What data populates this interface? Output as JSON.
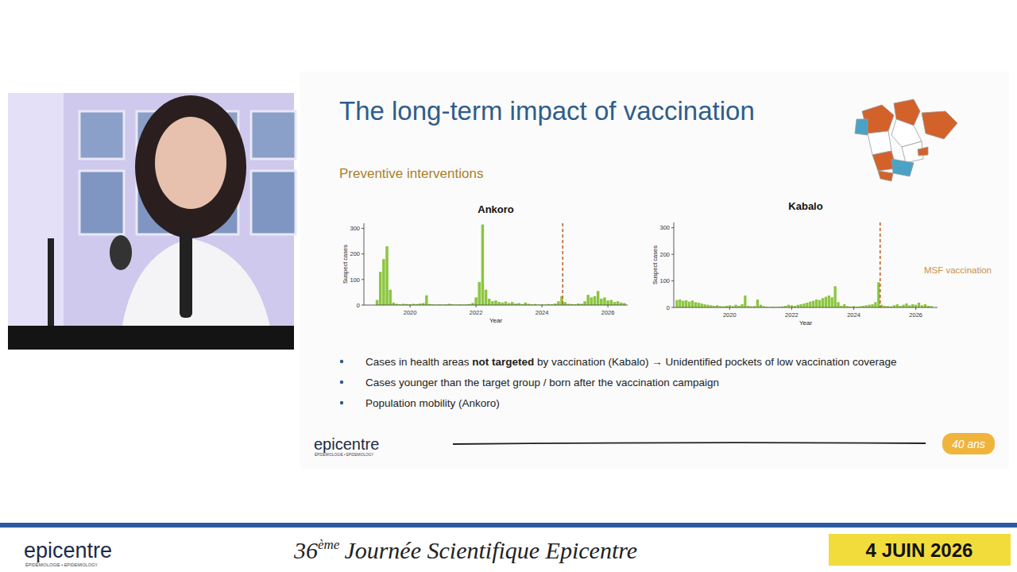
{
  "slide": {
    "title": "The long-term impact of vaccination",
    "subtitle": "Preventive interventions",
    "bullets": [
      {
        "before": "Cases in health areas ",
        "bold": "not targeted",
        "after": " by vaccination (Kabalo) → Unidentified pockets of low vaccination coverage"
      },
      {
        "text": "Cases younger than the target group / born after the vaccination campaign"
      },
      {
        "text": "Population mobility (Ankoro)"
      }
    ],
    "logo": {
      "name": "epicentre",
      "tagline": "ÉPIDÉMIOLOGIE • EPIDEMIOLOGY"
    },
    "badge": "40 ans"
  },
  "footer": {
    "logo": "epicentre",
    "tagline": "ÉPIDÉMIOLOGIE • EPIDEMIOLOGY",
    "edition": "36",
    "edition_suffix": "ème",
    "event": "Journée Scientifique Epicentre",
    "date": "4 JUIN 2026"
  },
  "chart_data": [
    {
      "type": "bar",
      "title": "Ankoro",
      "x_label": "Year",
      "y_label": "Suspect cases",
      "color": "#8cc63f",
      "x": [
        2019.0,
        2019.1,
        2019.2,
        2019.3,
        2019.4,
        2019.5,
        2019.6,
        2019.7,
        2019.8,
        2019.9,
        2020.0,
        2020.1,
        2020.2,
        2020.3,
        2020.4,
        2020.5,
        2020.6,
        2020.7,
        2020.8,
        2020.9,
        2021.0,
        2021.1,
        2021.2,
        2021.3,
        2021.4,
        2021.5,
        2021.6,
        2021.7,
        2021.8,
        2021.9,
        2022.0,
        2022.1,
        2022.2,
        2022.3,
        2022.4,
        2022.5,
        2022.6,
        2022.7,
        2022.8,
        2022.9,
        2023.0,
        2023.1,
        2023.2,
        2023.3,
        2023.4,
        2023.5,
        2023.6,
        2023.7,
        2023.8,
        2023.9,
        2024.0,
        2024.1,
        2024.2,
        2024.3,
        2024.4,
        2024.5,
        2024.6,
        2024.7,
        2024.8,
        2024.9,
        2025.0,
        2025.1,
        2025.2,
        2025.3,
        2025.4,
        2025.5,
        2025.6,
        2025.7,
        2025.8,
        2025.9,
        2026.0,
        2026.1,
        2026.2,
        2026.3,
        2026.4,
        2026.5
      ],
      "values": [
        20,
        130,
        180,
        230,
        60,
        10,
        5,
        3,
        5,
        4,
        3,
        5,
        4,
        6,
        8,
        38,
        4,
        3,
        2,
        3,
        2,
        3,
        5,
        3,
        2,
        3,
        2,
        3,
        4,
        8,
        30,
        90,
        315,
        60,
        25,
        15,
        18,
        12,
        10,
        14,
        8,
        12,
        6,
        8,
        4,
        10,
        5,
        3,
        4,
        2,
        3,
        2,
        4,
        3,
        6,
        15,
        35,
        12,
        5,
        4,
        3,
        6,
        5,
        15,
        40,
        30,
        35,
        55,
        25,
        30,
        18,
        20,
        12,
        15,
        10,
        8
      ],
      "xlim": [
        2018.6,
        2026.6
      ],
      "ylim": [
        0,
        320
      ],
      "xticks": [
        2020,
        2022,
        2024,
        2026
      ],
      "yticks": [
        0,
        100,
        200,
        300
      ],
      "reference_lines": [
        {
          "x": 2024.63
        }
      ]
    },
    {
      "type": "bar",
      "title": "Kabalo",
      "x_label": "Year",
      "y_label": "Suspect cases",
      "color": "#8cc63f",
      "x": [
        2018.3,
        2018.4,
        2018.5,
        2018.6,
        2018.7,
        2018.8,
        2018.9,
        2019.0,
        2019.1,
        2019.2,
        2019.3,
        2019.4,
        2019.5,
        2019.6,
        2019.7,
        2019.8,
        2019.9,
        2020.0,
        2020.1,
        2020.2,
        2020.3,
        2020.4,
        2020.5,
        2020.6,
        2020.7,
        2020.8,
        2020.9,
        2021.0,
        2021.1,
        2021.2,
        2021.3,
        2021.4,
        2021.5,
        2021.6,
        2021.7,
        2021.8,
        2021.9,
        2022.0,
        2022.1,
        2022.2,
        2022.3,
        2022.4,
        2022.5,
        2022.6,
        2022.7,
        2022.8,
        2022.9,
        2023.0,
        2023.1,
        2023.2,
        2023.3,
        2023.4,
        2023.5,
        2023.6,
        2023.7,
        2023.8,
        2023.9,
        2024.0,
        2024.1,
        2024.2,
        2024.3,
        2024.4,
        2024.5,
        2024.6,
        2024.7,
        2024.8,
        2024.9,
        2025.0,
        2025.1,
        2025.2,
        2025.3,
        2025.4,
        2025.5,
        2025.6,
        2025.7,
        2025.8,
        2025.9,
        2026.0,
        2026.1,
        2026.2,
        2026.3,
        2026.4,
        2026.5
      ],
      "values": [
        28,
        30,
        25,
        27,
        22,
        26,
        20,
        18,
        15,
        12,
        10,
        8,
        6,
        8,
        5,
        4,
        6,
        8,
        5,
        10,
        6,
        12,
        45,
        6,
        4,
        5,
        30,
        10,
        5,
        3,
        2,
        3,
        2,
        3,
        4,
        6,
        10,
        8,
        6,
        10,
        12,
        15,
        18,
        22,
        25,
        30,
        28,
        35,
        40,
        45,
        38,
        80,
        20,
        6,
        12,
        5,
        3,
        5,
        3,
        4,
        6,
        8,
        10,
        12,
        20,
        95,
        10,
        6,
        5,
        4,
        8,
        12,
        6,
        10,
        15,
        8,
        12,
        10,
        18,
        8,
        12,
        6,
        5
      ],
      "xlim": [
        2018.2,
        2026.7
      ],
      "ylim": [
        0,
        320
      ],
      "xticks": [
        2020,
        2022,
        2024,
        2026
      ],
      "yticks": [
        0,
        100,
        200,
        300
      ],
      "reference_lines": [
        {
          "x": 2024.85,
          "label": "MSF vaccination"
        }
      ]
    }
  ]
}
